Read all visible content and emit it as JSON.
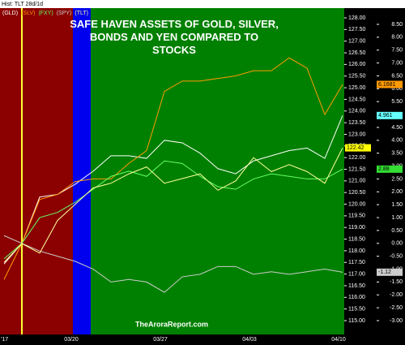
{
  "chart_data": {
    "type": "line",
    "header": "Hist: TLT 28d/1d",
    "title": "SAFE HAVEN ASSETS OF GOLD, SILVER, BONDS AND YEN COMPARED TO STOCKS",
    "source": "TheAroraReport.com",
    "categories": [
      "'17",
      null,
      null,
      null,
      "03/20",
      null,
      null,
      null,
      null,
      "03/27",
      null,
      null,
      null,
      null,
      "04/03",
      null,
      null,
      null,
      null,
      "04/10"
    ],
    "series": [
      {
        "name": "(GLD)",
        "color": "#ffffff",
        "label_color": "#66ffff",
        "values": [
          -0.8,
          0,
          1.8,
          1.9,
          2.3,
          2.8,
          3.4,
          3.4,
          3.3,
          4.0,
          3.9,
          3.5,
          2.9,
          2.7,
          3.2,
          3.4,
          3.6,
          3.7,
          3.3,
          4.961
        ]
      },
      {
        "name": "(SLV)",
        "color": "#ff9900",
        "label_color": "#ff9900",
        "values": [
          -1.4,
          0,
          1.7,
          1.9,
          2.4,
          2.5,
          2.5,
          3.1,
          3.6,
          5.9,
          6.3,
          6.3,
          6.4,
          6.5,
          6.7,
          6.7,
          7.2,
          6.8,
          5.0,
          6.1681
        ]
      },
      {
        "name": "(FXY)",
        "color": "#66ff66",
        "label_color": "#33dd33",
        "values": [
          -0.6,
          0,
          1.0,
          1.2,
          1.6,
          2.1,
          2.6,
          2.8,
          2.6,
          3.2,
          3.1,
          2.6,
          2.2,
          2.1,
          2.5,
          2.7,
          2.6,
          2.5,
          2.5,
          2.88
        ]
      },
      {
        "name": "(SPY)",
        "color": "#cccccc",
        "label_color": "#cccccc",
        "values": [
          0.3,
          0,
          -0.3,
          -0.5,
          -0.7,
          -1.0,
          -1.5,
          -1.4,
          -1.5,
          -1.9,
          -1.3,
          -1.2,
          -0.9,
          -0.9,
          -1.2,
          -1.1,
          -1.2,
          -1.1,
          -1.0,
          -1.12
        ]
      },
      {
        "name": "(TLT)",
        "color": "#ffff99",
        "label_color": "#ffff00",
        "axis": "y2",
        "values": [
          117.5,
          118.31,
          117.9,
          119.3,
          120.0,
          120.7,
          120.9,
          121.3,
          121.6,
          120.9,
          121.1,
          121.3,
          120.6,
          121.0,
          122.0,
          121.4,
          121.7,
          121.4,
          120.9,
          122.42
        ]
      }
    ],
    "ylim": [
      -3,
      8.5
    ],
    "yticks": [
      {
        "value": 8.5,
        "label": "8.50"
      },
      {
        "value": 8,
        "label": "8.00"
      },
      {
        "value": 7.5,
        "label": "7.50"
      },
      {
        "value": 7,
        "label": "7.00"
      },
      {
        "value": 6.5,
        "label": "6.50"
      },
      {
        "value": 6,
        "label": "6.00"
      },
      {
        "value": 5.5,
        "label": "5.50"
      },
      {
        "value": 5,
        "label": "5.00"
      },
      {
        "value": 4.5,
        "label": "4.50"
      },
      {
        "value": 4,
        "label": "4.00"
      },
      {
        "value": 3.5,
        "label": "3.50"
      },
      {
        "value": 3,
        "label": "3.00"
      },
      {
        "value": 2.5,
        "label": "2.50"
      },
      {
        "value": 2,
        "label": "2.00"
      },
      {
        "value": 1.5,
        "label": "1.50"
      },
      {
        "value": 1,
        "label": "1.00"
      },
      {
        "value": 0.5,
        "label": "0.50"
      },
      {
        "value": 0,
        "label": "0.00"
      },
      {
        "value": -0.5,
        "label": "-0.50"
      },
      {
        "value": -1,
        "label": "-1.00"
      },
      {
        "value": -1.5,
        "label": "-1.50"
      },
      {
        "value": -2,
        "label": "-2.00"
      },
      {
        "value": -2.5,
        "label": "-2.50"
      },
      {
        "value": -3,
        "label": "-3.00"
      }
    ],
    "y2lim": [
      115,
      128
    ],
    "y2ticks": [
      {
        "value": 128,
        "label": "128.00"
      },
      {
        "value": 127.5,
        "label": "127.50"
      },
      {
        "value": 127,
        "label": "127.00"
      },
      {
        "value": 126.5,
        "label": "126.50"
      },
      {
        "value": 126,
        "label": "126.00"
      },
      {
        "value": 125.5,
        "label": "125.50"
      },
      {
        "value": 125,
        "label": "125.00"
      },
      {
        "value": 124.5,
        "label": "124.50"
      },
      {
        "value": 124,
        "label": "124.00"
      },
      {
        "value": 123.5,
        "label": "123.50"
      },
      {
        "value": 123,
        "label": "123.00"
      },
      {
        "value": 122.5,
        "label": "122.50"
      },
      {
        "value": 122,
        "label": "122.00"
      },
      {
        "value": 121.5,
        "label": "121.50"
      },
      {
        "value": 121,
        "label": "121.00"
      },
      {
        "value": 120.5,
        "label": "120.50"
      },
      {
        "value": 120,
        "label": "120.00"
      },
      {
        "value": 119.5,
        "label": "119.50"
      },
      {
        "value": 119,
        "label": "119.00"
      },
      {
        "value": 118.5,
        "label": "118.50"
      },
      {
        "value": 118,
        "label": "118.00"
      },
      {
        "value": 117.5,
        "label": "117.50"
      },
      {
        "value": 117,
        "label": "117.00"
      },
      {
        "value": 116.5,
        "label": "116.50"
      },
      {
        "value": 116,
        "label": "116.00"
      },
      {
        "value": 115.5,
        "label": "115.50"
      },
      {
        "value": 115,
        "label": "115.00"
      }
    ],
    "grid": false
  }
}
